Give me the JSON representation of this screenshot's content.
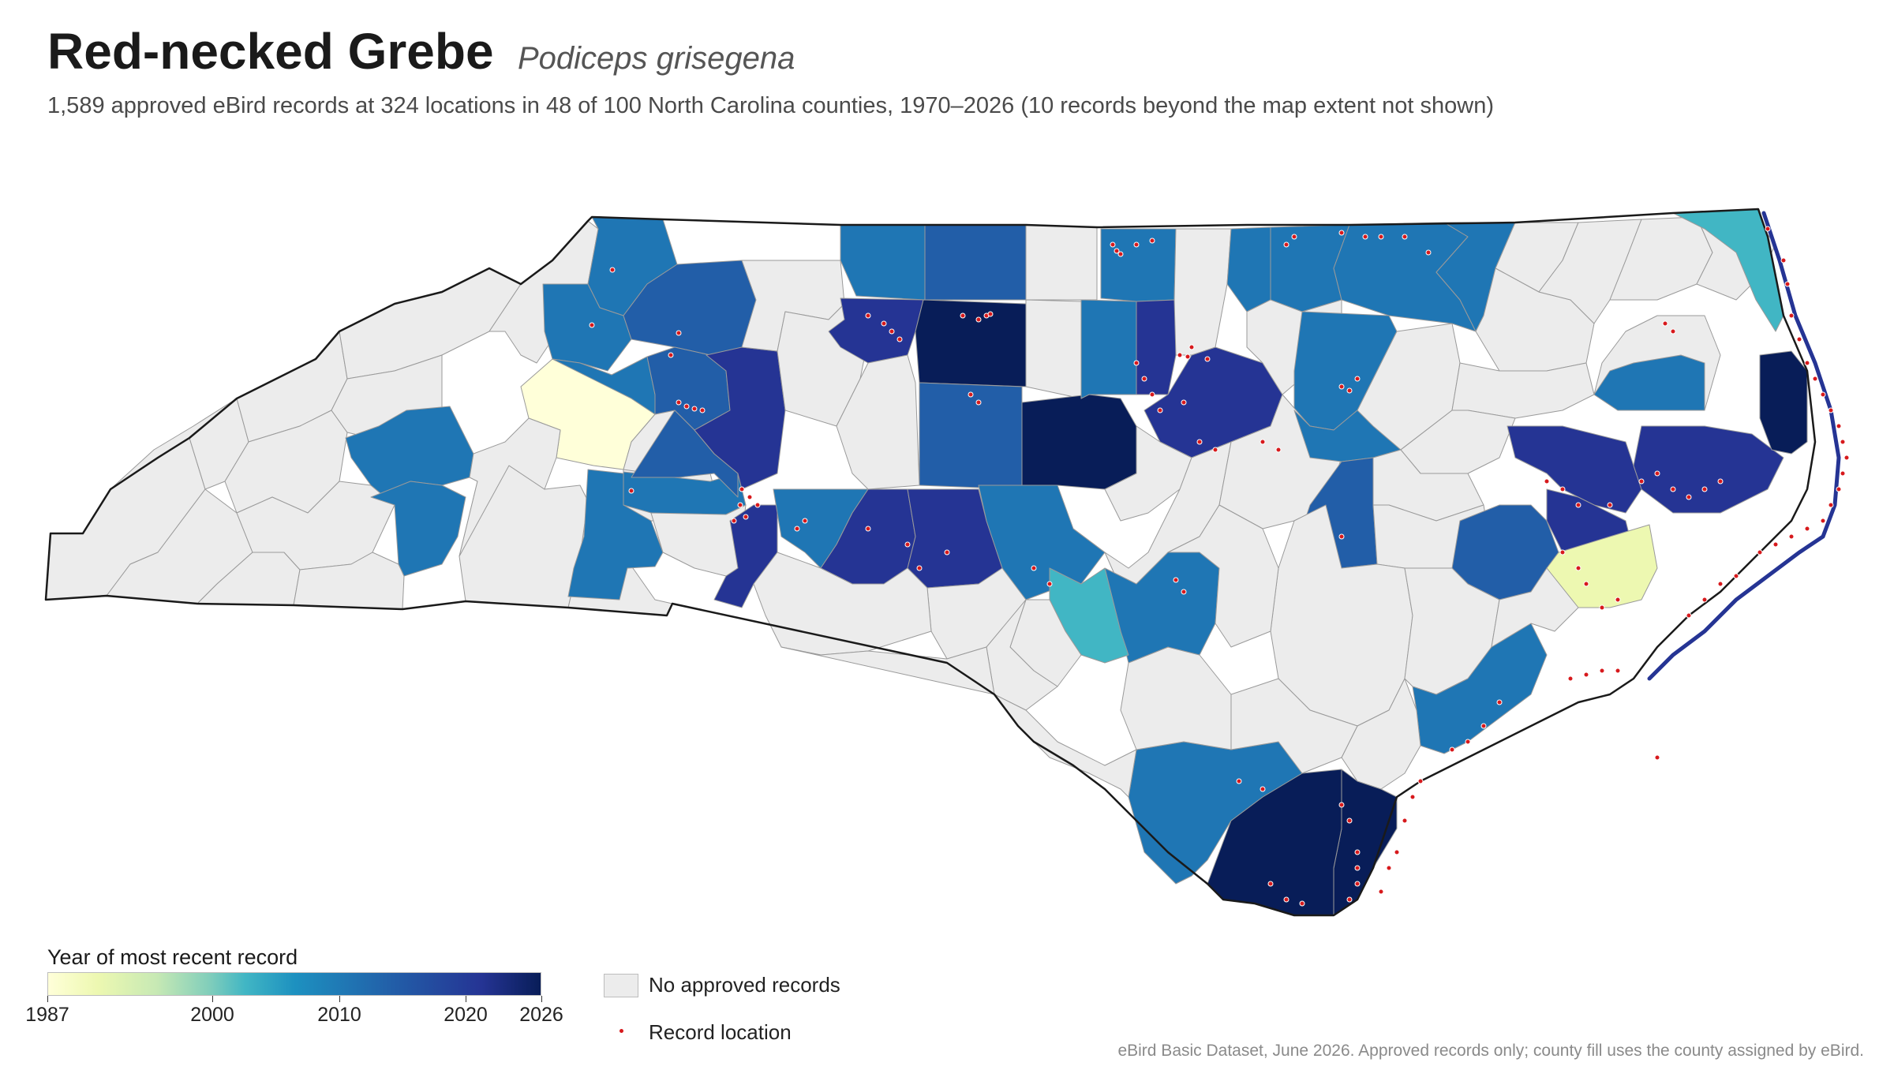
{
  "title": "Red-necked Grebe",
  "scientific_name": "Podiceps grisegena",
  "subtitle": "1,589 approved eBird records at 324 locations in 48 of 100 North Carolina counties, 1970–2026 (10 records beyond the map extent not shown)",
  "legend": {
    "title": "Year of most recent record",
    "ticks": [
      "1987",
      "2000",
      "2010",
      "2020",
      "2026"
    ],
    "no_records_label": "No approved records",
    "record_label": "Record location"
  },
  "source": "eBird Basic Dataset, June 2026. Approved records only; county fill uses the county assigned by eBird.",
  "colors": {
    "no_records": "#ececec",
    "record_dot": "#d7191c",
    "scale": [
      "#ffffd9",
      "#edf8b1",
      "#c7e9b4",
      "#7fcdbb",
      "#41b6c4",
      "#1d91c0",
      "#225ea8",
      "#253494",
      "#081d58"
    ]
  }
}
